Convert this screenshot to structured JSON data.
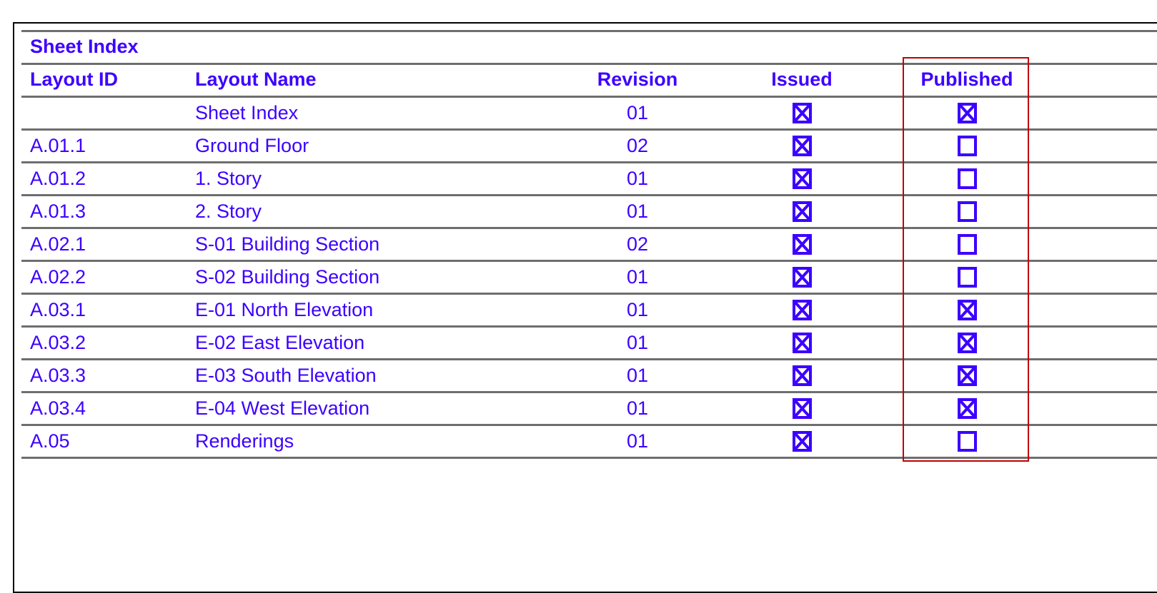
{
  "title": "Sheet Index",
  "columns": [
    "Layout ID",
    "Layout Name",
    "Revision",
    "Issued",
    "Published"
  ],
  "colors": {
    "text": "#3c00ff",
    "rule": "#6e6e6e",
    "highlight": "#c00000"
  },
  "rows": [
    {
      "id": "",
      "name": "Sheet Index",
      "revision": "01",
      "issued": true,
      "published": true
    },
    {
      "id": "A.01.1",
      "name": "Ground Floor",
      "revision": "02",
      "issued": true,
      "published": false
    },
    {
      "id": "A.01.2",
      "name": "1. Story",
      "revision": "01",
      "issued": true,
      "published": false
    },
    {
      "id": "A.01.3",
      "name": "2. Story",
      "revision": "01",
      "issued": true,
      "published": false
    },
    {
      "id": "A.02.1",
      "name": "S-01 Building Section",
      "revision": "02",
      "issued": true,
      "published": false
    },
    {
      "id": "A.02.2",
      "name": "S-02 Building Section",
      "revision": "01",
      "issued": true,
      "published": false
    },
    {
      "id": "A.03.1",
      "name": "E-01 North Elevation",
      "revision": "01",
      "issued": true,
      "published": true
    },
    {
      "id": "A.03.2",
      "name": "E-02 East Elevation",
      "revision": "01",
      "issued": true,
      "published": true
    },
    {
      "id": "A.03.3",
      "name": "E-03 South Elevation",
      "revision": "01",
      "issued": true,
      "published": true
    },
    {
      "id": "A.03.4",
      "name": "E-04 West Elevation",
      "revision": "01",
      "issued": true,
      "published": true
    },
    {
      "id": "A.05",
      "name": "Renderings",
      "revision": "01",
      "issued": true,
      "published": false
    }
  ]
}
